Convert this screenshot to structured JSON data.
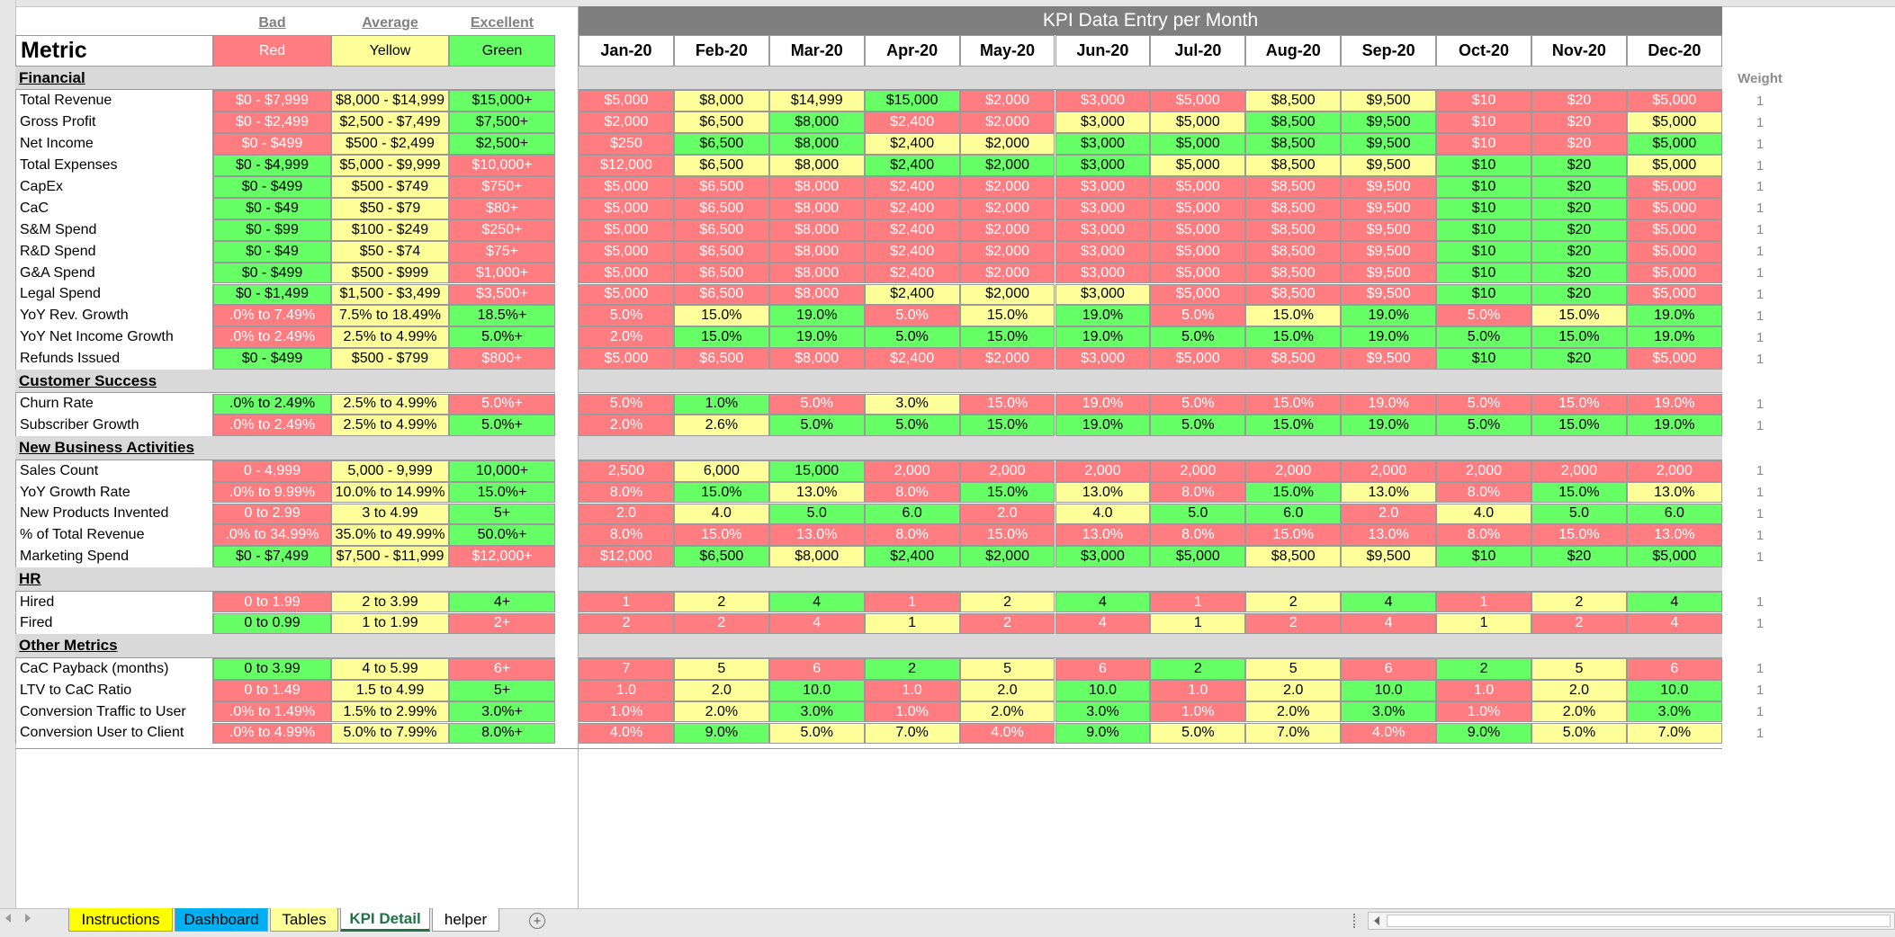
{
  "tiers": {
    "headers": [
      "Bad",
      "Average",
      "Excellent"
    ],
    "labels": [
      "Red",
      "Yellow",
      "Green"
    ]
  },
  "metric_header": "Metric",
  "kpi_title": "KPI Data Entry per Month",
  "months": [
    "Jan-20",
    "Feb-20",
    "Mar-20",
    "Apr-20",
    "May-20",
    "Jun-20",
    "Jul-20",
    "Aug-20",
    "Sep-20",
    "Oct-20",
    "Nov-20",
    "Dec-20"
  ],
  "weight_label": "Weight",
  "rows": [
    {
      "type": "section",
      "label": "Financial"
    },
    {
      "type": "metric",
      "label": "Total Revenue",
      "tiers": [
        [
          "$0 - $7,999",
          "red"
        ],
        [
          "$8,000 - $14,999",
          "yellow"
        ],
        [
          "$15,000+",
          "green"
        ]
      ],
      "values": [
        "$5,000",
        "$8,000",
        "$14,999",
        "$15,000",
        "$2,000",
        "$3,000",
        "$5,000",
        "$8,500",
        "$9,500",
        "$10",
        "$20",
        "$5,000"
      ],
      "colors": "RYYGRRRYYRRR",
      "weight": "1"
    },
    {
      "type": "metric",
      "label": "Gross Profit",
      "tiers": [
        [
          "$0 - $2,499",
          "red"
        ],
        [
          "$2,500 - $7,499",
          "yellow"
        ],
        [
          "$7,500+",
          "green"
        ]
      ],
      "values": [
        "$2,000",
        "$6,500",
        "$8,000",
        "$2,400",
        "$2,000",
        "$3,000",
        "$5,000",
        "$8,500",
        "$9,500",
        "$10",
        "$20",
        "$5,000"
      ],
      "colors": "RYGRRYYGGRRY",
      "weight": "1"
    },
    {
      "type": "metric",
      "label": "Net Income",
      "tiers": [
        [
          "$0 - $499",
          "red"
        ],
        [
          "$500 - $2,499",
          "yellow"
        ],
        [
          "$2,500+",
          "green"
        ]
      ],
      "values": [
        "$250",
        "$6,500",
        "$8,000",
        "$2,400",
        "$2,000",
        "$3,000",
        "$5,000",
        "$8,500",
        "$9,500",
        "$10",
        "$20",
        "$5,000"
      ],
      "colors": "RGGYYGGGGRRG",
      "weight": "1"
    },
    {
      "type": "metric",
      "label": "Total Expenses",
      "tiers": [
        [
          "$0 - $4,999",
          "green"
        ],
        [
          "$5,000 - $9,999",
          "yellow"
        ],
        [
          "$10,000+",
          "red"
        ]
      ],
      "values": [
        "$12,000",
        "$6,500",
        "$8,000",
        "$2,400",
        "$2,000",
        "$3,000",
        "$5,000",
        "$8,500",
        "$9,500",
        "$10",
        "$20",
        "$5,000"
      ],
      "colors": "RYYGGGYYYGGY",
      "weight": "1"
    },
    {
      "type": "metric",
      "label": "CapEx",
      "tiers": [
        [
          "$0 - $499",
          "green"
        ],
        [
          "$500 - $749",
          "yellow"
        ],
        [
          "$750+",
          "red"
        ]
      ],
      "values": [
        "$5,000",
        "$6,500",
        "$8,000",
        "$2,400",
        "$2,000",
        "$3,000",
        "$5,000",
        "$8,500",
        "$9,500",
        "$10",
        "$20",
        "$5,000"
      ],
      "colors": "RRRRRRRRRGGR",
      "weight": "1"
    },
    {
      "type": "metric",
      "label": "CaC",
      "tiers": [
        [
          "$0 - $49",
          "green"
        ],
        [
          "$50 - $79",
          "yellow"
        ],
        [
          "$80+",
          "red"
        ]
      ],
      "values": [
        "$5,000",
        "$6,500",
        "$8,000",
        "$2,400",
        "$2,000",
        "$3,000",
        "$5,000",
        "$8,500",
        "$9,500",
        "$10",
        "$20",
        "$5,000"
      ],
      "colors": "RRRRRRRRRGGR",
      "weight": "1"
    },
    {
      "type": "metric",
      "label": "S&M Spend",
      "tiers": [
        [
          "$0 - $99",
          "green"
        ],
        [
          "$100 - $249",
          "yellow"
        ],
        [
          "$250+",
          "red"
        ]
      ],
      "values": [
        "$5,000",
        "$6,500",
        "$8,000",
        "$2,400",
        "$2,000",
        "$3,000",
        "$5,000",
        "$8,500",
        "$9,500",
        "$10",
        "$20",
        "$5,000"
      ],
      "colors": "RRRRRRRRRGGR",
      "weight": "1"
    },
    {
      "type": "metric",
      "label": "R&D Spend",
      "tiers": [
        [
          "$0 - $49",
          "green"
        ],
        [
          "$50 - $74",
          "yellow"
        ],
        [
          "$75+",
          "red"
        ]
      ],
      "values": [
        "$5,000",
        "$6,500",
        "$8,000",
        "$2,400",
        "$2,000",
        "$3,000",
        "$5,000",
        "$8,500",
        "$9,500",
        "$10",
        "$20",
        "$5,000"
      ],
      "colors": "RRRRRRRRRGGR",
      "weight": "1"
    },
    {
      "type": "metric",
      "label": "G&A Spend",
      "tiers": [
        [
          "$0 - $499",
          "green"
        ],
        [
          "$500 - $999",
          "yellow"
        ],
        [
          "$1,000+",
          "red"
        ]
      ],
      "values": [
        "$5,000",
        "$6,500",
        "$8,000",
        "$2,400",
        "$2,000",
        "$3,000",
        "$5,000",
        "$8,500",
        "$9,500",
        "$10",
        "$20",
        "$5,000"
      ],
      "colors": "RRRRRRRRRGGR",
      "weight": "1"
    },
    {
      "type": "metric",
      "label": "Legal Spend",
      "tiers": [
        [
          "$0 - $1,499",
          "green"
        ],
        [
          "$1,500 - $3,499",
          "yellow"
        ],
        [
          "$3,500+",
          "red"
        ]
      ],
      "values": [
        "$5,000",
        "$6,500",
        "$8,000",
        "$2,400",
        "$2,000",
        "$3,000",
        "$5,000",
        "$8,500",
        "$9,500",
        "$10",
        "$20",
        "$5,000"
      ],
      "colors": "RRRYYYRRRGGR",
      "weight": "1"
    },
    {
      "type": "metric",
      "label": "YoY Rev. Growth",
      "tiers": [
        [
          ".0% to 7.49%",
          "red"
        ],
        [
          "7.5% to 18.49%",
          "yellow"
        ],
        [
          "18.5%+",
          "green"
        ]
      ],
      "values": [
        "5.0%",
        "15.0%",
        "19.0%",
        "5.0%",
        "15.0%",
        "19.0%",
        "5.0%",
        "15.0%",
        "19.0%",
        "5.0%",
        "15.0%",
        "19.0%"
      ],
      "colors": "RYGRYGRYGRYG",
      "weight": "1"
    },
    {
      "type": "metric",
      "label": "YoY Net Income Growth",
      "tiers": [
        [
          ".0% to 2.49%",
          "red"
        ],
        [
          "2.5% to 4.99%",
          "yellow"
        ],
        [
          "5.0%+",
          "green"
        ]
      ],
      "values": [
        "2.0%",
        "15.0%",
        "19.0%",
        "5.0%",
        "15.0%",
        "19.0%",
        "5.0%",
        "15.0%",
        "19.0%",
        "5.0%",
        "15.0%",
        "19.0%"
      ],
      "colors": "RGGGGGGGGGGG",
      "weight": "1"
    },
    {
      "type": "metric",
      "label": "Refunds Issued",
      "tiers": [
        [
          "$0 - $499",
          "green"
        ],
        [
          "$500 - $799",
          "yellow"
        ],
        [
          "$800+",
          "red"
        ]
      ],
      "values": [
        "$5,000",
        "$6,500",
        "$8,000",
        "$2,400",
        "$2,000",
        "$3,000",
        "$5,000",
        "$8,500",
        "$9,500",
        "$10",
        "$20",
        "$5,000"
      ],
      "colors": "RRRRRRRRRGGR",
      "weight": "1"
    },
    {
      "type": "section",
      "label": "Customer Success"
    },
    {
      "type": "metric",
      "label": "Churn Rate",
      "tiers": [
        [
          ".0% to 2.49%",
          "green"
        ],
        [
          "2.5% to 4.99%",
          "yellow"
        ],
        [
          "5.0%+",
          "red"
        ]
      ],
      "values": [
        "5.0%",
        "1.0%",
        "5.0%",
        "3.0%",
        "15.0%",
        "19.0%",
        "5.0%",
        "15.0%",
        "19.0%",
        "5.0%",
        "15.0%",
        "19.0%"
      ],
      "colors": "RGRYRRRRRRRR",
      "weight": "1"
    },
    {
      "type": "metric",
      "label": "Subscriber Growth",
      "tiers": [
        [
          ".0% to 2.49%",
          "red"
        ],
        [
          "2.5% to 4.99%",
          "yellow"
        ],
        [
          "5.0%+",
          "green"
        ]
      ],
      "values": [
        "2.0%",
        "2.6%",
        "5.0%",
        "5.0%",
        "15.0%",
        "19.0%",
        "5.0%",
        "15.0%",
        "19.0%",
        "5.0%",
        "15.0%",
        "19.0%"
      ],
      "colors": "RYGGGGGGGGGG",
      "weight": "1"
    },
    {
      "type": "section",
      "label": "New Business Activities"
    },
    {
      "type": "metric",
      "label": "Sales Count",
      "tiers": [
        [
          "0 - 4,999",
          "red"
        ],
        [
          "5,000 - 9,999",
          "yellow"
        ],
        [
          "10,000+",
          "green"
        ]
      ],
      "values": [
        "2,500",
        "6,000",
        "15,000",
        "2,000",
        "2,000",
        "2,000",
        "2,000",
        "2,000",
        "2,000",
        "2,000",
        "2,000",
        "2,000"
      ],
      "colors": "RYGRRRRRRRRR",
      "weight": "1"
    },
    {
      "type": "metric",
      "label": "YoY Growth Rate",
      "tiers": [
        [
          ".0% to 9.99%",
          "red"
        ],
        [
          "10.0% to 14.99%",
          "yellow"
        ],
        [
          "15.0%+",
          "green"
        ]
      ],
      "values": [
        "8.0%",
        "15.0%",
        "13.0%",
        "8.0%",
        "15.0%",
        "13.0%",
        "8.0%",
        "15.0%",
        "13.0%",
        "8.0%",
        "15.0%",
        "13.0%"
      ],
      "colors": "RGYRGYRGYRGY",
      "weight": "1"
    },
    {
      "type": "metric",
      "label": "New Products Invented",
      "tiers": [
        [
          "0 to 2.99",
          "red"
        ],
        [
          "3 to 4.99",
          "yellow"
        ],
        [
          "5+",
          "green"
        ]
      ],
      "values": [
        "2.0",
        "4.0",
        "5.0",
        "6.0",
        "2.0",
        "4.0",
        "5.0",
        "6.0",
        "2.0",
        "4.0",
        "5.0",
        "6.0"
      ],
      "colors": "RYGGRYGGRYGG",
      "weight": "1"
    },
    {
      "type": "metric",
      "label": "% of Total Revenue",
      "tiers": [
        [
          ".0% to 34.99%",
          "red"
        ],
        [
          "35.0% to 49.99%",
          "yellow"
        ],
        [
          "50.0%+",
          "green"
        ]
      ],
      "values": [
        "8.0%",
        "15.0%",
        "13.0%",
        "8.0%",
        "15.0%",
        "13.0%",
        "8.0%",
        "15.0%",
        "13.0%",
        "8.0%",
        "15.0%",
        "13.0%"
      ],
      "colors": "RRRRRRRRRRRR",
      "weight": "1"
    },
    {
      "type": "metric",
      "label": "Marketing Spend",
      "tiers": [
        [
          "$0 - $7,499",
          "green"
        ],
        [
          "$7,500 - $11,999",
          "yellow"
        ],
        [
          "$12,000+",
          "red"
        ]
      ],
      "values": [
        "$12,000",
        "$6,500",
        "$8,000",
        "$2,400",
        "$2,000",
        "$3,000",
        "$5,000",
        "$8,500",
        "$9,500",
        "$10",
        "$20",
        "$5,000"
      ],
      "colors": "RGYGGGGYYGGG",
      "weight": "1"
    },
    {
      "type": "section",
      "label": "HR"
    },
    {
      "type": "metric",
      "label": "Hired",
      "tiers": [
        [
          "0 to 1.99",
          "red"
        ],
        [
          "2 to 3.99",
          "yellow"
        ],
        [
          "4+",
          "green"
        ]
      ],
      "values": [
        "1",
        "2",
        "4",
        "1",
        "2",
        "4",
        "1",
        "2",
        "4",
        "1",
        "2",
        "4"
      ],
      "colors": "RYGRYGRYGRYG",
      "weight": "1"
    },
    {
      "type": "metric",
      "label": "Fired",
      "tiers": [
        [
          "0 to 0.99",
          "green"
        ],
        [
          "1 to 1.99",
          "yellow"
        ],
        [
          "2+",
          "red"
        ]
      ],
      "values": [
        "2",
        "2",
        "4",
        "1",
        "2",
        "4",
        "1",
        "2",
        "4",
        "1",
        "2",
        "4"
      ],
      "colors": "RRRYRRYRRYRR",
      "weight": "1"
    },
    {
      "type": "section",
      "label": "Other Metrics"
    },
    {
      "type": "metric",
      "label": "CaC Payback (months)",
      "tiers": [
        [
          "0 to 3.99",
          "green"
        ],
        [
          "4 to 5.99",
          "yellow"
        ],
        [
          "6+",
          "red"
        ]
      ],
      "values": [
        "7",
        "5",
        "6",
        "2",
        "5",
        "6",
        "2",
        "5",
        "6",
        "2",
        "5",
        "6"
      ],
      "colors": "RYRGYRGYRGYR",
      "weight": "1"
    },
    {
      "type": "metric",
      "label": "LTV to CaC Ratio",
      "tiers": [
        [
          "0 to 1.49",
          "red"
        ],
        [
          "1.5 to 4.99",
          "yellow"
        ],
        [
          "5+",
          "green"
        ]
      ],
      "values": [
        "1.0",
        "2.0",
        "10.0",
        "1.0",
        "2.0",
        "10.0",
        "1.0",
        "2.0",
        "10.0",
        "1.0",
        "2.0",
        "10.0"
      ],
      "colors": "RYGRYGRYGRYG",
      "weight": "1"
    },
    {
      "type": "metric",
      "label": "Conversion Traffic to User",
      "tiers": [
        [
          ".0% to 1.49%",
          "red"
        ],
        [
          "1.5% to 2.99%",
          "yellow"
        ],
        [
          "3.0%+",
          "green"
        ]
      ],
      "values": [
        "1.0%",
        "2.0%",
        "3.0%",
        "1.0%",
        "2.0%",
        "3.0%",
        "1.0%",
        "2.0%",
        "3.0%",
        "1.0%",
        "2.0%",
        "3.0%"
      ],
      "colors": "RYGRYGRYGRYG",
      "weight": "1"
    },
    {
      "type": "metric",
      "label": "Conversion User to Client",
      "tiers": [
        [
          ".0% to 4.99%",
          "red"
        ],
        [
          "5.0% to 7.99%",
          "yellow"
        ],
        [
          "8.0%+",
          "green"
        ]
      ],
      "values": [
        "4.0%",
        "9.0%",
        "5.0%",
        "7.0%",
        "4.0%",
        "9.0%",
        "5.0%",
        "7.0%",
        "4.0%",
        "9.0%",
        "5.0%",
        "7.0%"
      ],
      "colors": "RGYYRGYYRGYY",
      "weight": "1"
    }
  ],
  "tabs": [
    {
      "label": "Instructions",
      "bg": "#ffff00",
      "active": false
    },
    {
      "label": "Dashboard",
      "bg": "#00b0f0",
      "active": false
    },
    {
      "label": "Tables",
      "bg": "#ffff99",
      "active": false
    },
    {
      "label": "KPI Detail",
      "bg": "#ffffff",
      "active": true
    },
    {
      "label": "helper",
      "bg": "#ffffff",
      "active": false
    }
  ],
  "icons": {
    "add_sheet": "plus-circle-icon",
    "nav_prev": "triangle-left-icon",
    "nav_next": "triangle-right-icon",
    "scroll_left": "triangle-left-icon"
  },
  "colors": {
    "red": "#ff7c80",
    "yellow": "#ffff99",
    "green": "#66ff66",
    "section_bg": "#d9d9d9",
    "title_bg": "#7f7f7f",
    "active_tab_text": "#217346"
  }
}
